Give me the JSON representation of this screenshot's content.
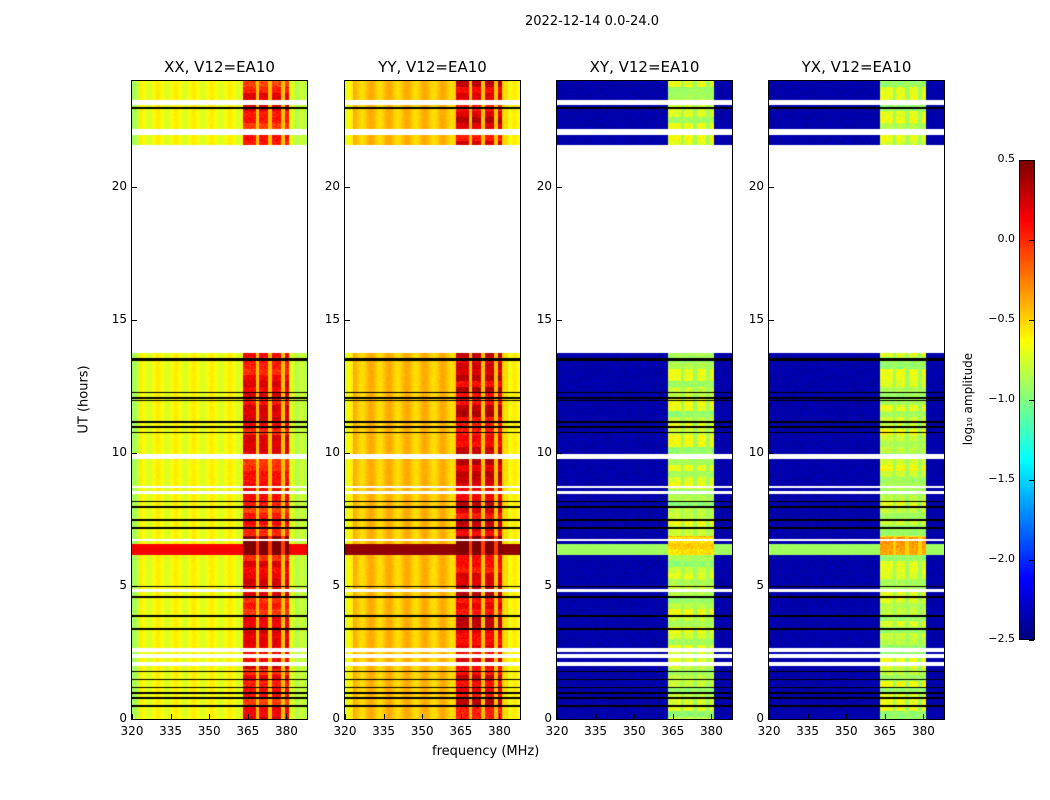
{
  "chart_data": {
    "type": "heatmap",
    "suptitle": "2022-12-14 0.0-24.0",
    "xlabel": "frequency (MHz)",
    "ylabel": "UT (hours)",
    "xlim": [
      320,
      388
    ],
    "ylim": [
      0,
      24
    ],
    "xticks": [
      320,
      335,
      350,
      365,
      380
    ],
    "yticks": [
      0,
      5,
      10,
      15,
      20
    ],
    "panels": [
      {
        "title": "XX, V12=EA10",
        "baseline": -0.65,
        "band_level": 0.1
      },
      {
        "title": "YY, V12=EA10",
        "baseline": -0.45,
        "band_level": 0.2
      },
      {
        "title": "XY, V12=EA10",
        "baseline": -2.4,
        "band_level": -0.8
      },
      {
        "title": "YX, V12=EA10",
        "baseline": -2.4,
        "band_level": -0.8
      }
    ],
    "rfi_band_MHz": [
      363,
      381
    ],
    "bright_time_band_hours": [
      6.2,
      6.6
    ],
    "no_data_hours": [
      [
        13.8,
        21.6
      ],
      [
        2.0,
        2.15
      ],
      [
        2.3,
        2.45
      ],
      [
        2.55,
        2.7
      ],
      [
        8.5,
        8.6
      ],
      [
        8.7,
        8.8
      ],
      [
        9.8,
        10.0
      ],
      [
        6.7,
        6.8
      ],
      [
        4.8,
        4.9
      ],
      [
        22.0,
        22.2
      ],
      [
        23.1,
        23.3
      ]
    ],
    "flagged_rows_hours": [
      0.5,
      0.8,
      1.0,
      1.2,
      1.5,
      1.8,
      3.4,
      3.9,
      4.6,
      5.0,
      7.2,
      7.5,
      8.0,
      8.2,
      10.8,
      11.0,
      11.2,
      12.0,
      12.1,
      12.3,
      13.5,
      13.55,
      21.6,
      23.0
    ],
    "colorbar": {
      "label": "log₁₀ amplitude",
      "range": [
        -2.5,
        0.5
      ],
      "ticks": [
        "0.5",
        "0.0",
        "−0.5",
        "−1.0",
        "−1.5",
        "−2.0",
        "−2.5"
      ],
      "colormap": "jet"
    }
  }
}
